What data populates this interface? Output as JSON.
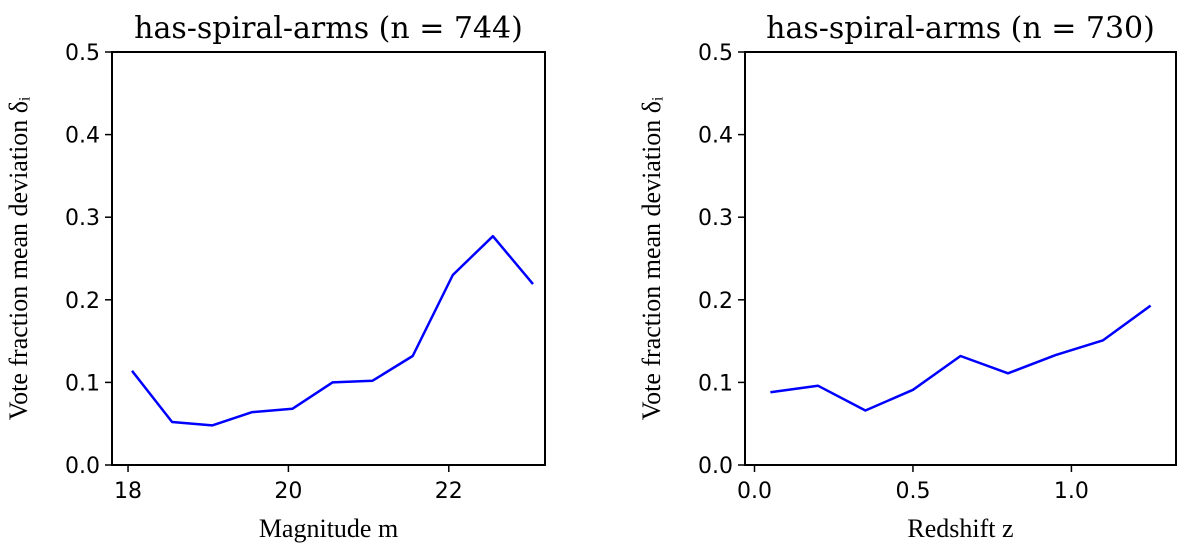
{
  "chart_data": [
    {
      "type": "line",
      "title": "has-spiral-arms (n = 744)",
      "xlabel": "Magnitude m",
      "ylabel": "Vote fraction mean deviation δᵢ",
      "xlim": [
        17.8,
        23.2
      ],
      "ylim": [
        0.0,
        0.5
      ],
      "xticks": [
        18,
        20,
        22
      ],
      "xtick_labels": [
        "18",
        "20",
        "22"
      ],
      "yticks": [
        0.0,
        0.1,
        0.2,
        0.3,
        0.4,
        0.5
      ],
      "ytick_labels": [
        "0.0",
        "0.1",
        "0.2",
        "0.3",
        "0.4",
        "0.5"
      ],
      "grid": false,
      "color": "#0000ff",
      "x": [
        18.05,
        18.55,
        19.05,
        19.55,
        20.05,
        20.55,
        21.05,
        21.55,
        22.05,
        22.55,
        23.05
      ],
      "y": [
        0.114,
        0.052,
        0.048,
        0.064,
        0.068,
        0.1,
        0.102,
        0.132,
        0.23,
        0.277,
        0.219
      ]
    },
    {
      "type": "line",
      "title": "has-spiral-arms (n = 730)",
      "xlabel": "Redshift z",
      "ylabel": "Vote fraction mean deviation δᵢ",
      "xlim": [
        -0.03,
        1.33
      ],
      "ylim": [
        0.0,
        0.5
      ],
      "xticks": [
        0.0,
        0.5,
        1.0
      ],
      "xtick_labels": [
        "0.0",
        "0.5",
        "1.0"
      ],
      "yticks": [
        0.0,
        0.1,
        0.2,
        0.3,
        0.4,
        0.5
      ],
      "ytick_labels": [
        "0.0",
        "0.1",
        "0.2",
        "0.3",
        "0.4",
        "0.5"
      ],
      "grid": false,
      "color": "#0000ff",
      "x": [
        0.05,
        0.2,
        0.35,
        0.5,
        0.65,
        0.8,
        0.95,
        1.1,
        1.25
      ],
      "y": [
        0.088,
        0.096,
        0.066,
        0.091,
        0.132,
        0.111,
        0.133,
        0.151,
        0.193
      ]
    }
  ]
}
